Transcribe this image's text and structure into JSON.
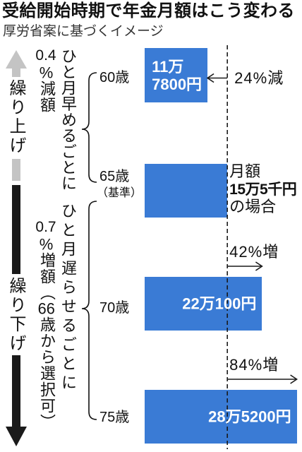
{
  "side_panel": {
    "advance": {
      "label": "繰り上げ",
      "rate": "0.4",
      "rate_text": "%減額",
      "per_month": "ひと月早めるごとに"
    },
    "defer": {
      "label": "繰り下げ",
      "rate": "0.7",
      "rate_text": "%増額（66歳から選択可）",
      "per_month": "ひと月遅らせるごとに"
    }
  },
  "colors": {
    "bar": "#3a7bd5",
    "bar_label": "#ffffff",
    "advance_arrow": "#c4c4c4",
    "defer_arrow": "#1a1a1a",
    "reference_line": "#1a1a1a"
  },
  "chart_data": {
    "type": "bar",
    "horizontal": true,
    "title": "受給開始時期で年金月額はこう変わる",
    "subtitle": "厚労省案に基づくイメージ",
    "categories": [
      "60歳",
      "65歳",
      "70歳",
      "75歳"
    ],
    "category_notes": [
      "",
      "（基準）",
      "",
      ""
    ],
    "values": [
      117800,
      155000,
      220100,
      285200
    ],
    "data_labels": [
      "11万\n7800円",
      "",
      "22万100円",
      "28万5200円"
    ],
    "change_labels": [
      "24%減",
      "",
      "42%増",
      "84%増"
    ],
    "xlim": [
      0,
      295000
    ],
    "grid": false,
    "reference": {
      "value": 155000,
      "note": [
        "月額",
        "15万5千円",
        "の場合"
      ]
    }
  }
}
